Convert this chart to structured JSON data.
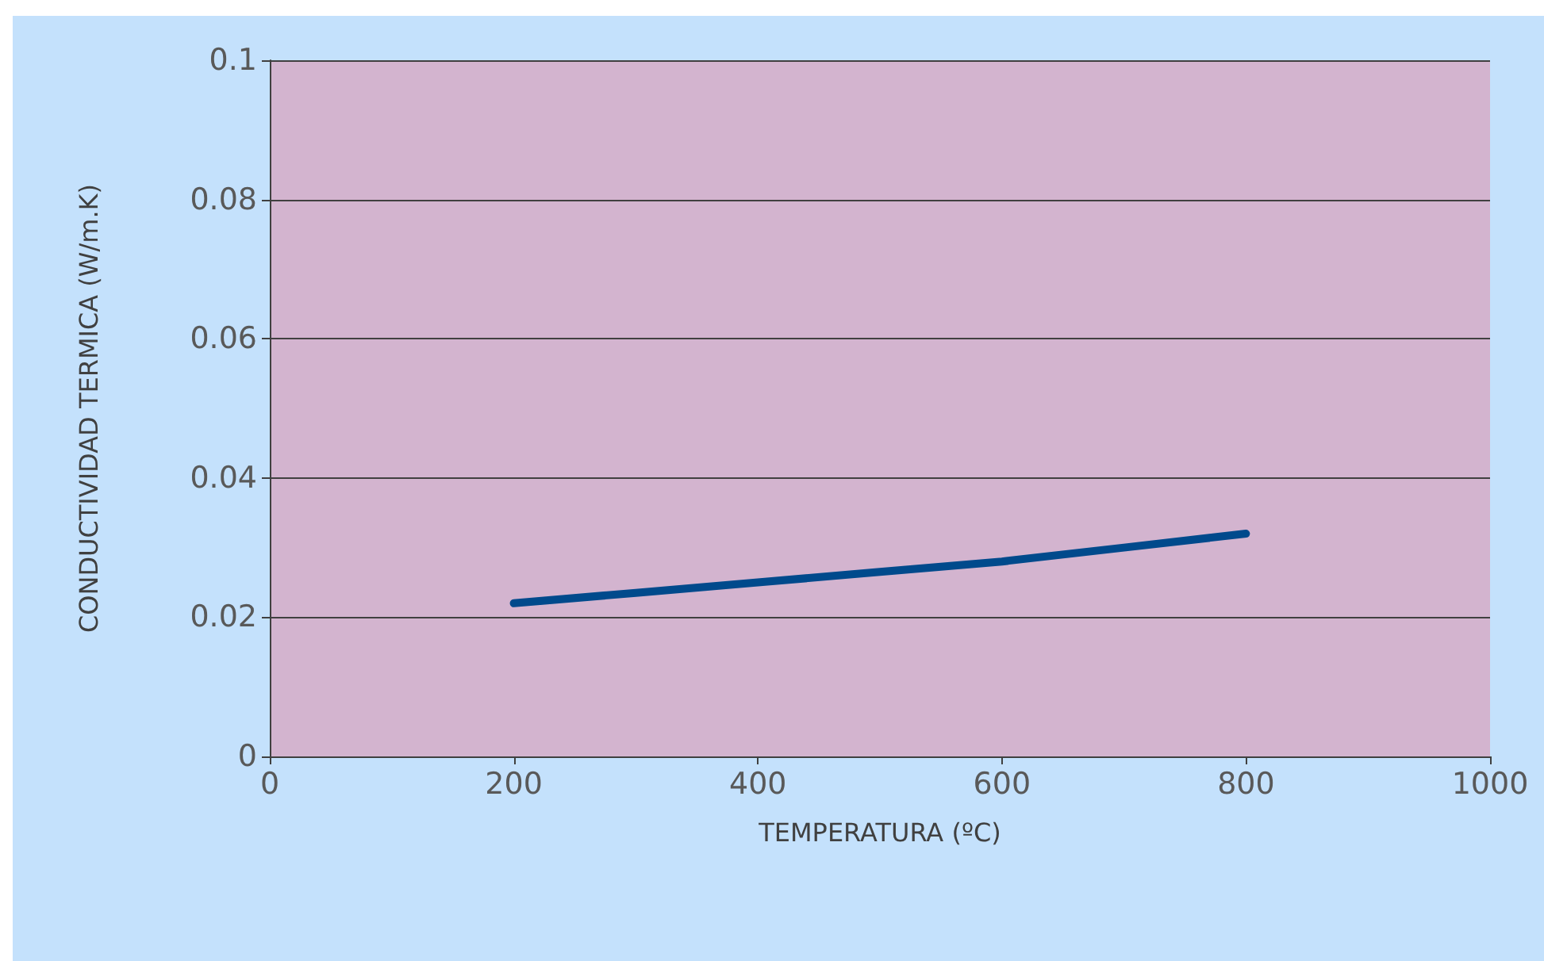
{
  "chart_data": {
    "type": "line",
    "xlabel": "TEMPERATURA (ºC)",
    "ylabel": "CONDUCTIVIDAD TERMICA (W/m.K)",
    "x": [
      200,
      300,
      400,
      500,
      600,
      700,
      800
    ],
    "series": [
      {
        "color": "#004a8c",
        "values": [
          0.022,
          0.0235,
          0.025,
          0.0265,
          0.028,
          0.03,
          0.032
        ]
      }
    ],
    "xlim": [
      0,
      1000
    ],
    "xticks": [
      0,
      200,
      400,
      600,
      800,
      1000
    ],
    "ylim": [
      0,
      0.1
    ],
    "yticks": [
      0,
      0.02,
      0.04,
      0.06,
      0.08,
      0.1
    ],
    "grid": "y",
    "marker": "none",
    "line_style": "solid"
  }
}
